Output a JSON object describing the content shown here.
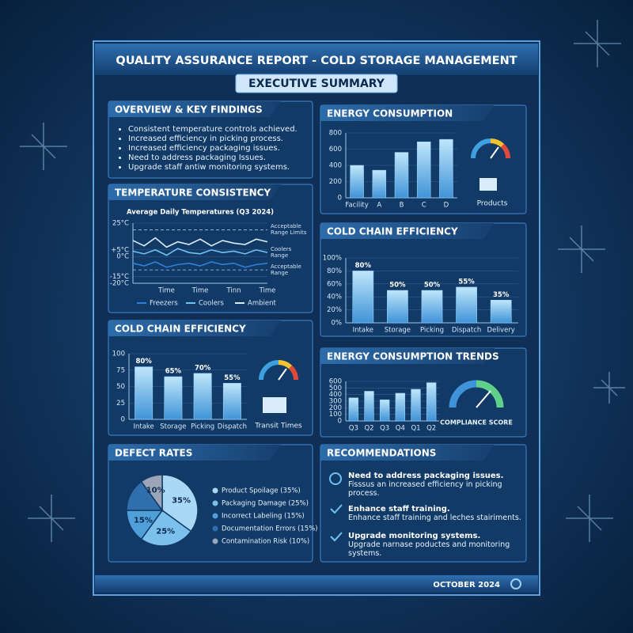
{
  "header": {
    "title": "QUALITY ASSURANCE REPORT - COLD STORAGE MANAGEMENT",
    "subtitle": "EXECUTIVE SUMMARY"
  },
  "overview": {
    "title": "OVERVIEW & KEY FINDINGS",
    "items": [
      "Consistent temperature controls achieved.",
      "Increased efficiency in picking process.",
      "Increased efficiency packaging issues.",
      "Need to address packaging Issues.",
      "Upgrade staff antiw monitoring systems."
    ]
  },
  "chart_data": [
    {
      "type": "line",
      "title": "TEMPERATURE CONSISTENCY",
      "subtitle": "Average Daily Temperatures (Q3 2024)",
      "categories": [
        null,
        null,
        null,
        "Time",
        null,
        null,
        "Time",
        null,
        null,
        "Tinn",
        null,
        null,
        "Time"
      ],
      "series": [
        {
          "name": "Freezers",
          "color": "#2f7fd8",
          "values": [
            -5,
            -7,
            -4,
            -8,
            -6,
            -5,
            -7,
            -4,
            -6,
            -5,
            -8,
            -6,
            -5
          ]
        },
        {
          "name": "Coolers",
          "color": "#6fc3f0",
          "values": [
            4,
            2,
            5,
            1,
            6,
            3,
            2,
            5,
            3,
            4,
            2,
            5,
            3
          ]
        },
        {
          "name": "Ambient",
          "color": "#d8ecfa",
          "values": [
            12,
            8,
            14,
            7,
            11,
            9,
            13,
            8,
            12,
            10,
            9,
            13,
            11
          ]
        }
      ],
      "annotations": [
        {
          "text": "Acceptable Range Limits",
          "value": 20,
          "dashed": true
        },
        {
          "text": "Coolers Range",
          "value": 3,
          "dashed": false
        },
        {
          "text": "Acceptable Range",
          "value": -10,
          "dashed": true
        }
      ],
      "ylim": [
        -20,
        25
      ],
      "yticks": [
        {
          "value": 25,
          "label": "25°C"
        },
        {
          "value": 5,
          "label": "+5°C"
        },
        {
          "value": 0,
          "label": "0°C"
        },
        {
          "value": -15,
          "label": "-15°C"
        },
        {
          "value": -20,
          "label": "-20°C"
        }
      ],
      "grid": true
    },
    {
      "type": "bar",
      "title": "ENERGY CONSUMPTION",
      "note": "Products",
      "categories": [
        "Facility",
        "A",
        "B",
        "C",
        "D"
      ],
      "values": [
        400,
        340,
        560,
        690,
        720
      ],
      "ylim": [
        0,
        800
      ],
      "yticks": [
        0,
        200,
        400,
        600,
        800
      ],
      "grid": true
    },
    {
      "type": "bar",
      "title": "COLD CHAIN EFFICIENCY",
      "categories": [
        "Intake",
        "Storage",
        "Picking",
        "Dispatch",
        "Delivery"
      ],
      "values": [
        80,
        50,
        50,
        55,
        35
      ],
      "value_labels": [
        "80%",
        "50%",
        "50%",
        "55%",
        "35%"
      ],
      "ylim": [
        0,
        100
      ],
      "yticks": [
        {
          "value": 0,
          "label": "0%"
        },
        {
          "value": 20,
          "label": "20%"
        },
        {
          "value": 40,
          "label": "40%"
        },
        {
          "value": 60,
          "label": "60%"
        },
        {
          "value": 80,
          "label": "80%"
        },
        {
          "value": 100,
          "label": "100%"
        }
      ],
      "grid": true
    },
    {
      "type": "bar",
      "title": "COLD CHAIN EFFICIENCY",
      "note": "Transit Times",
      "categories": [
        "Intake",
        "Storage",
        "Picking",
        "Dispatch"
      ],
      "values": [
        80,
        65,
        70,
        55
      ],
      "value_labels": [
        "80%",
        "65%",
        "70%",
        "55%"
      ],
      "ylim": [
        0,
        100
      ],
      "yticks": [
        0,
        25,
        50,
        75,
        100
      ],
      "grid": true
    },
    {
      "type": "bar",
      "title": "ENERGY CONSUMPTION TRENDS",
      "note": "COMPLIANCE SCORE",
      "categories": [
        "Q3",
        "Q2",
        "Q3",
        "Q4",
        "Q1",
        "Q2"
      ],
      "values": [
        350,
        450,
        320,
        420,
        480,
        580
      ],
      "ylim": [
        0,
        600
      ],
      "yticks": [
        0,
        100,
        200,
        300,
        400,
        500,
        600
      ],
      "grid": true
    },
    {
      "type": "pie",
      "title": "DEFECT RATES",
      "categories": [
        "Product Spoilage (35%)",
        "Packaging Damage (25%)",
        "Incorrect Labeling (15%)",
        "Documentation Errors (15%)",
        "Contamination Risk (10%)"
      ],
      "values": [
        35,
        25,
        15,
        15,
        10
      ],
      "value_labels": [
        "35%",
        "25%",
        "15%",
        null,
        "10%"
      ],
      "colors": [
        "#a9d8f5",
        "#7cc0ee",
        "#4f9fd9",
        "#2f6fae",
        "#9aa6b8"
      ]
    }
  ],
  "recommendations": {
    "title": "RECOMMENDATIONS",
    "items": [
      {
        "title": "Need to address packaging issues.",
        "text": "Fisssus an increased efficiency in picking process."
      },
      {
        "title": "Enhance staff training.",
        "text": "Enhance staff training and leches stairiments."
      },
      {
        "title": "Upgrade monitoring systems.",
        "text": "Upgrade narnase poductes and monitoring systems."
      }
    ]
  },
  "footer": {
    "date": "OCTOBER 2024"
  }
}
